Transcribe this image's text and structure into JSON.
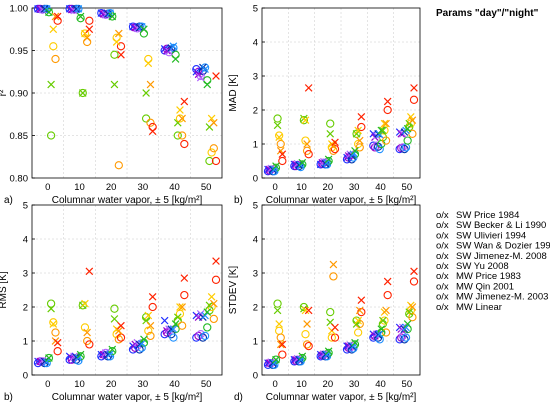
{
  "legend": {
    "title": "Params \"day\"/\"night\"",
    "entries": [
      {
        "marker": "o/x",
        "label": "SW Price 1984",
        "color": "#1f2eff"
      },
      {
        "marker": "o/x",
        "label": "SW Becker & Li 1990",
        "color": "#9900cc"
      },
      {
        "marker": "o/x",
        "label": "SW Ulivieri 1994",
        "color": "#b266ff"
      },
      {
        "marker": "o/x",
        "label": "SW Wan & Dozier 1996",
        "color": "#0033aa"
      },
      {
        "marker": "o/x",
        "label": "SW Jimenez-M. 2008",
        "color": "#1e90ff"
      },
      {
        "marker": "o/x",
        "label": "SW Yu 2008",
        "color": "#22bb22"
      },
      {
        "marker": "o/x",
        "label": "MW Price 1983",
        "color": "#66cc00"
      },
      {
        "marker": "o/x",
        "label": "MW Qin 2001",
        "color": "#ffcc00"
      },
      {
        "marker": "o/x",
        "label": "MW Jimenez-M. 2003",
        "color": "#ff9900"
      },
      {
        "marker": "o/x",
        "label": "MW Linear",
        "color": "#ff2200"
      }
    ]
  },
  "chart_data": [
    {
      "type": "scatter",
      "letter": "a)",
      "xlabel": "Columnar water vapor, ± 5 [kg/m²]",
      "ylabel": "r²",
      "categories": [
        "0",
        "10",
        "20",
        "30",
        "40",
        "50"
      ],
      "ylim": [
        0.8,
        1.0
      ],
      "yticks": [
        "0.80",
        "0.85",
        "0.90",
        "0.95",
        "1.00"
      ],
      "ytickvals": [
        0.8,
        0.85,
        0.9,
        0.95,
        1.0
      ],
      "series_o": [
        [
          0.999,
          0.999,
          0.994,
          0.978,
          0.95,
          0.928
        ],
        [
          0.999,
          0.999,
          0.993,
          0.977,
          0.952,
          0.925
        ],
        [
          0.998,
          0.998,
          0.992,
          0.976,
          0.948,
          0.92
        ],
        [
          0.999,
          0.999,
          0.993,
          0.978,
          0.951,
          0.926
        ],
        [
          0.999,
          0.999,
          0.994,
          0.978,
          0.953,
          0.93
        ],
        [
          0.995,
          0.988,
          0.99,
          0.97,
          0.945,
          0.915
        ],
        [
          0.85,
          0.9,
          0.945,
          0.87,
          0.85,
          0.82
        ],
        [
          0.955,
          0.97,
          0.965,
          0.94,
          0.87,
          0.83
        ],
        [
          0.94,
          0.96,
          0.815,
          0.865,
          0.85,
          0.835
        ],
        [
          0.985,
          0.985,
          0.955,
          0.86,
          0.84,
          0.82
        ]
      ],
      "series_x": [
        [
          0.999,
          0.999,
          0.994,
          0.978,
          0.952,
          0.925
        ],
        [
          0.999,
          0.998,
          0.993,
          0.977,
          0.95,
          0.922
        ],
        [
          0.998,
          0.997,
          0.992,
          0.976,
          0.949,
          0.918
        ],
        [
          0.999,
          0.999,
          0.993,
          0.977,
          0.953,
          0.93
        ],
        [
          0.999,
          0.999,
          0.994,
          0.978,
          0.955,
          0.928
        ],
        [
          0.995,
          0.99,
          0.99,
          0.975,
          0.94,
          0.91
        ],
        [
          0.91,
          0.9,
          0.91,
          0.9,
          0.865,
          0.86
        ],
        [
          0.975,
          0.97,
          0.96,
          0.935,
          0.88,
          0.87
        ],
        [
          0.99,
          0.965,
          0.97,
          0.91,
          0.87,
          0.865
        ],
        [
          0.99,
          0.975,
          0.945,
          0.855,
          0.89,
          0.92
        ]
      ]
    },
    {
      "type": "scatter",
      "letter": "b)",
      "xlabel": "Columnar water vapor, ± 5 [kg/m²]",
      "ylabel": "MAD [K]",
      "categories": [
        "0",
        "10",
        "20",
        "30",
        "40",
        "50"
      ],
      "ylim": [
        0,
        5
      ],
      "yticks": [
        "0",
        "1",
        "2",
        "3",
        "4",
        "5"
      ],
      "ytickvals": [
        0,
        1,
        2,
        3,
        4,
        5
      ],
      "series_o": [
        [
          0.2,
          0.35,
          0.4,
          0.55,
          0.95,
          0.85
        ],
        [
          0.22,
          0.35,
          0.42,
          0.6,
          0.9,
          0.88
        ],
        [
          0.25,
          0.38,
          0.45,
          0.65,
          0.95,
          0.9
        ],
        [
          0.2,
          0.35,
          0.4,
          0.55,
          0.92,
          0.85
        ],
        [
          0.2,
          0.32,
          0.4,
          0.6,
          0.85,
          0.9
        ],
        [
          0.3,
          0.4,
          0.5,
          0.7,
          1.0,
          1.1
        ],
        [
          1.75,
          1.7,
          1.6,
          1.3,
          1.2,
          1.5
        ],
        [
          1.25,
          1.1,
          0.9,
          1.0,
          1.4,
          1.6
        ],
        [
          1.0,
          0.8,
          0.8,
          0.9,
          1.1,
          1.3
        ],
        [
          0.5,
          0.7,
          0.85,
          1.5,
          2.0,
          2.3
        ]
      ],
      "series_x": [
        [
          0.25,
          0.4,
          0.4,
          0.6,
          1.3,
          1.35
        ],
        [
          0.25,
          0.4,
          0.45,
          0.65,
          1.2,
          1.3
        ],
        [
          0.28,
          0.42,
          0.48,
          0.7,
          1.25,
          1.3
        ],
        [
          0.25,
          0.38,
          0.42,
          0.65,
          1.3,
          1.35
        ],
        [
          0.25,
          0.38,
          0.45,
          0.7,
          1.28,
          1.4
        ],
        [
          0.35,
          0.45,
          0.55,
          0.8,
          1.4,
          1.45
        ],
        [
          1.55,
          1.75,
          1.3,
          1.3,
          1.4,
          1.6
        ],
        [
          1.2,
          1.7,
          1.0,
          1.4,
          1.6,
          1.8
        ],
        [
          0.8,
          1.0,
          0.95,
          1.1,
          1.6,
          1.7
        ],
        [
          0.7,
          2.65,
          1.05,
          1.8,
          2.25,
          2.65
        ]
      ]
    },
    {
      "type": "scatter",
      "letter": "b)",
      "xlabel": "Columnar water vapor, ± 5 [kg/m²]",
      "ylabel": "RMS [K]",
      "categories": [
        "0",
        "10",
        "20",
        "30",
        "40",
        "50"
      ],
      "ylim": [
        0,
        5
      ],
      "yticks": [
        "0",
        "1",
        "2",
        "3",
        "4",
        "5"
      ],
      "ytickvals": [
        0,
        1,
        2,
        3,
        4,
        5
      ],
      "series_o": [
        [
          0.35,
          0.45,
          0.55,
          0.75,
          1.2,
          1.1
        ],
        [
          0.4,
          0.45,
          0.6,
          0.8,
          1.25,
          1.15
        ],
        [
          0.4,
          0.5,
          0.65,
          0.85,
          1.3,
          1.2
        ],
        [
          0.35,
          0.45,
          0.55,
          0.75,
          1.2,
          1.1
        ],
        [
          0.35,
          0.42,
          0.55,
          0.8,
          1.1,
          1.15
        ],
        [
          0.5,
          0.55,
          0.7,
          0.95,
          1.35,
          1.4
        ],
        [
          2.1,
          2.05,
          1.95,
          1.7,
          1.6,
          1.9
        ],
        [
          1.55,
          1.4,
          1.2,
          1.3,
          1.8,
          2.0
        ],
        [
          1.25,
          1.0,
          1.05,
          1.15,
          1.45,
          1.65
        ],
        [
          0.7,
          0.9,
          1.1,
          2.0,
          2.35,
          2.8
        ]
      ],
      "series_x": [
        [
          0.4,
          0.55,
          0.6,
          0.85,
          1.6,
          1.75
        ],
        [
          0.4,
          0.5,
          0.6,
          0.9,
          1.3,
          1.7
        ],
        [
          0.42,
          0.55,
          0.65,
          0.95,
          1.35,
          1.8
        ],
        [
          0.4,
          0.52,
          0.6,
          0.9,
          1.35,
          1.7
        ],
        [
          0.38,
          0.5,
          0.62,
          0.92,
          1.35,
          1.75
        ],
        [
          0.5,
          0.6,
          0.75,
          1.05,
          1.5,
          1.85
        ],
        [
          1.95,
          2.05,
          1.65,
          1.6,
          1.7,
          2.05
        ],
        [
          1.5,
          2.1,
          1.35,
          1.75,
          2.0,
          2.3
        ],
        [
          1.0,
          1.25,
          1.3,
          1.45,
          2.0,
          2.1
        ],
        [
          0.95,
          3.05,
          1.45,
          2.3,
          2.85,
          3.35
        ]
      ]
    },
    {
      "type": "scatter",
      "letter": "d)",
      "xlabel": "Columnar water vapor, ± 5 [kg/m²]",
      "ylabel": "STDEV [K]",
      "categories": [
        "0",
        "10",
        "20",
        "30",
        "40",
        "50"
      ],
      "ylim": [
        0,
        5
      ],
      "yticks": [
        "0",
        "1",
        "2",
        "3",
        "4",
        "5"
      ],
      "ytickvals": [
        0,
        1,
        2,
        3,
        4,
        5
      ],
      "series_o": [
        [
          0.3,
          0.4,
          0.55,
          0.75,
          1.1,
          1.05
        ],
        [
          0.35,
          0.42,
          0.58,
          0.8,
          1.15,
          1.1
        ],
        [
          0.35,
          0.45,
          0.6,
          0.8,
          1.2,
          1.15
        ],
        [
          0.3,
          0.4,
          0.55,
          0.75,
          1.1,
          1.05
        ],
        [
          0.3,
          0.4,
          0.55,
          0.78,
          1.05,
          1.1
        ],
        [
          0.45,
          0.5,
          0.65,
          0.9,
          1.25,
          1.35
        ],
        [
          2.1,
          2.0,
          1.85,
          1.6,
          1.5,
          1.8
        ],
        [
          1.3,
          1.2,
          1.1,
          1.25,
          1.6,
          1.9
        ],
        [
          1.1,
          0.9,
          2.9,
          1.5,
          1.25,
          1.7
        ],
        [
          0.6,
          0.85,
          1.1,
          1.85,
          2.35,
          2.75
        ]
      ],
      "series_x": [
        [
          0.35,
          0.45,
          0.6,
          0.85,
          1.2,
          1.4
        ],
        [
          0.35,
          0.45,
          0.58,
          0.85,
          1.15,
          1.35
        ],
        [
          0.38,
          0.48,
          0.62,
          0.88,
          1.2,
          1.4
        ],
        [
          0.35,
          0.45,
          0.6,
          0.85,
          1.18,
          1.35
        ],
        [
          0.35,
          0.45,
          0.6,
          0.85,
          1.2,
          1.4
        ],
        [
          0.45,
          0.55,
          0.7,
          0.95,
          1.35,
          1.5
        ],
        [
          1.9,
          1.95,
          1.55,
          1.5,
          1.6,
          1.85
        ],
        [
          1.5,
          1.9,
          1.3,
          1.6,
          1.85,
          2.05
        ],
        [
          0.9,
          1.5,
          3.25,
          1.9,
          1.9,
          2.0
        ],
        [
          0.9,
          1.9,
          1.4,
          2.2,
          2.75,
          3.05
        ]
      ]
    }
  ]
}
